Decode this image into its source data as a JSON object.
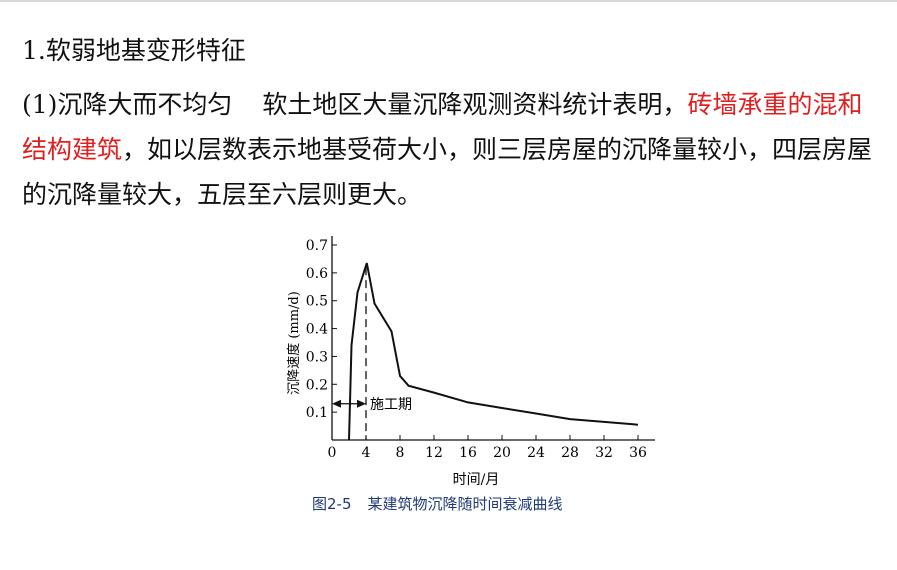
{
  "heading": "1.软弱地基变形特征",
  "paragraph": {
    "lead": "(1)沉降大而不均匀",
    "text1": "软土地区大量沉降观测资料统计表明，",
    "highlight": "砖墙承重的混和结构建筑",
    "text2": "，如以层数表示地基受荷大小，则三层房屋的沉降量较小，四层房屋的沉降量较大，五层至六层则更大。"
  },
  "colors": {
    "highlight": "#e02020",
    "caption": "#1f3a78"
  },
  "figure": {
    "caption_number": "图2-5",
    "caption_text": "某建筑物沉降随时间衰减曲线"
  },
  "chart_data": {
    "type": "line",
    "xlabel": "时间/月",
    "ylabel": "沉降速度 (mm/d)",
    "x_ticks": [
      "0",
      "4",
      "8",
      "12",
      "16",
      "20",
      "24",
      "28",
      "32",
      "36"
    ],
    "y_ticks": [
      "0.1",
      "0.2",
      "0.3",
      "0.4",
      "0.5",
      "0.6",
      "0.7"
    ],
    "xlim": [
      0,
      38
    ],
    "ylim": [
      0,
      0.7
    ],
    "series": [
      {
        "x": [
          2,
          2.3,
          3,
          4.1,
          5,
          7,
          8,
          9,
          12,
          16,
          20,
          24,
          28,
          32,
          36
        ],
        "y": [
          0,
          0.34,
          0.53,
          0.635,
          0.49,
          0.39,
          0.23,
          0.195,
          0.17,
          0.135,
          0.115,
          0.095,
          0.075,
          0.065,
          0.055
        ]
      }
    ],
    "annotation": {
      "label": "施工期",
      "x_start": 0,
      "x_end": 4,
      "y": 0.13
    },
    "grid": false
  }
}
